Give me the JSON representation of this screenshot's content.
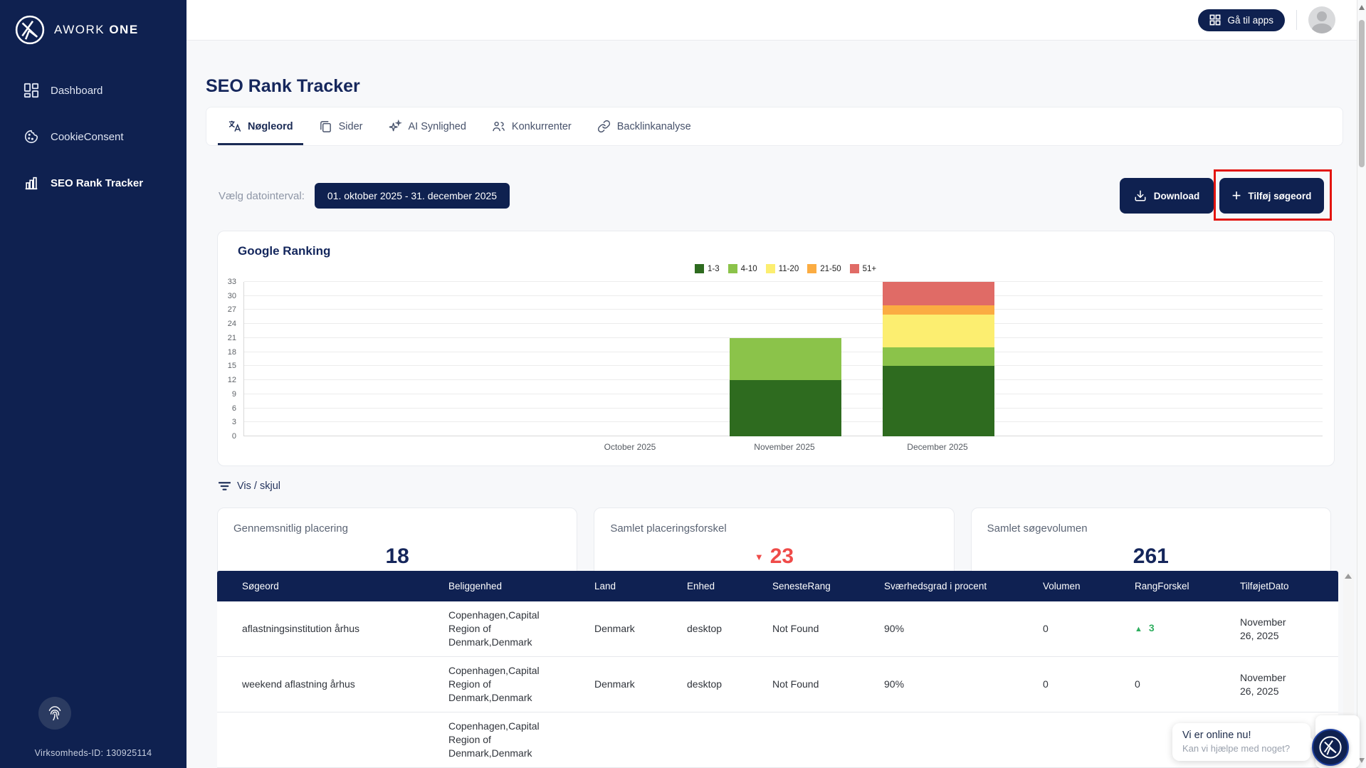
{
  "theme": {
    "navy": "#0f2150",
    "accent_red": "#ef4b49",
    "accent_green": "#2eae5f",
    "highlight_annotation": "#e3150f"
  },
  "sidebar": {
    "brand": "AWORK",
    "brand_bold": "ONE",
    "items": [
      {
        "label": "Dashboard",
        "active": false
      },
      {
        "label": "CookieConsent",
        "active": false
      },
      {
        "label": "SEO Rank Tracker",
        "active": true
      }
    ],
    "company_id": "Virksomheds-ID: 130925114"
  },
  "topbar": {
    "apps_button": "Gå til apps"
  },
  "page": {
    "title": "SEO Rank Tracker",
    "tabs": [
      {
        "label": "Nøgleord",
        "active": true
      },
      {
        "label": "Sider",
        "active": false
      },
      {
        "label": "AI Synlighed",
        "active": false
      },
      {
        "label": "Konkurrenter",
        "active": false
      },
      {
        "label": "Backlinkanalyse",
        "active": false
      }
    ],
    "date_filter": {
      "label": "Vælg datointerval:",
      "value": "01. oktober 2025 - 31. december 2025"
    },
    "actions": {
      "download": "Download",
      "add_keyword": "Tilføj søgeord"
    },
    "toggle_link": "Vis / skjul"
  },
  "chart_data": {
    "type": "bar",
    "stacked": true,
    "title": "Google Ranking",
    "categories": [
      "October 2025",
      "November 2025",
      "December 2025"
    ],
    "series": [
      {
        "name": "1-3",
        "color": "#2e6b1f",
        "values": [
          0,
          12,
          15
        ]
      },
      {
        "name": "4-10",
        "color": "#8bc34a",
        "values": [
          0,
          9,
          4
        ]
      },
      {
        "name": "11-20",
        "color": "#fcee70",
        "values": [
          0,
          0,
          7
        ]
      },
      {
        "name": "21-50",
        "color": "#fbac42",
        "values": [
          0,
          0,
          2
        ]
      },
      {
        "name": "51+",
        "color": "#e06b66",
        "values": [
          0,
          0,
          5
        ]
      }
    ],
    "ylim": [
      0,
      33
    ],
    "ytick_step": 3,
    "grid": true,
    "legend_position": "top-right"
  },
  "stats": [
    {
      "label": "Gennemsnitlig placering",
      "value": "18",
      "trend": null
    },
    {
      "label": "Samlet placeringsforskel",
      "value": "23",
      "trend": "down"
    },
    {
      "label": "Samlet søgevolumen",
      "value": "261",
      "trend": null
    }
  ],
  "table": {
    "headers": [
      "Søgeord",
      "Beliggenhed",
      "Land",
      "Enhed",
      "SenesteRang",
      "Sværhedsgrad i procent",
      "Volumen",
      "RangForskel",
      "TilføjetDato"
    ],
    "rows": [
      {
        "keyword": "aflastningsinstitution århus",
        "location": "Copenhagen,Capital Region of Denmark,Denmark",
        "country": "Denmark",
        "device": "desktop",
        "latest_rank": "Not Found",
        "difficulty": "90%",
        "volume": "0",
        "rank_diff": "3",
        "rank_diff_dir": "up",
        "added_date": "November 26, 2025"
      },
      {
        "keyword": "weekend aflastning århus",
        "location": "Copenhagen,Capital Region of Denmark,Denmark",
        "country": "Denmark",
        "device": "desktop",
        "latest_rank": "Not Found",
        "difficulty": "90%",
        "volume": "0",
        "rank_diff": "0",
        "rank_diff_dir": null,
        "added_date": "November 26, 2025"
      },
      {
        "keyword": "",
        "location": "Copenhagen,Capital Region of Denmark,Denmark",
        "country": "",
        "device": "",
        "latest_rank": "",
        "difficulty": "",
        "volume": "",
        "rank_diff": "",
        "rank_diff_dir": null,
        "added_date": ""
      }
    ]
  },
  "chat": {
    "title": "Vi er online nu!",
    "subtitle": "Kan vi hjælpe med noget?"
  }
}
